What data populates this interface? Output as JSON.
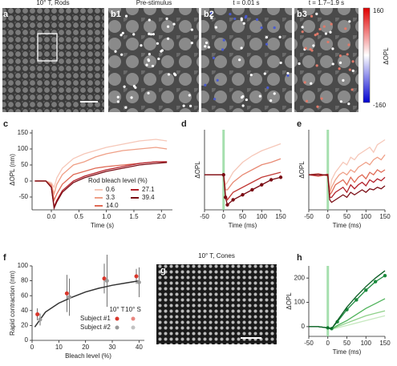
{
  "image_panels": [
    {
      "label": "a",
      "title": "10° T, Rods"
    },
    {
      "label": "b1",
      "title": "Pre-stimulus"
    },
    {
      "label": "b2",
      "title": "t = 0.01 s"
    },
    {
      "label": "b3",
      "title": "t = 1.7–1.9 s"
    },
    {
      "label": "g",
      "title": "10° T, Cones"
    }
  ],
  "colorbar": {
    "ticks": [
      160,
      -160
    ],
    "label": "ΔOPL"
  },
  "chart_data": [
    {
      "type": "line",
      "panel": "c",
      "xlabel": "Time (s)",
      "ylabel": "ΔOPL (nm)",
      "xlim": [
        -0.35,
        2.2
      ],
      "ylim": [
        -90,
        160
      ],
      "xticks": [
        {
          "value": 0,
          "label": "0.0"
        },
        0.5,
        {
          "value": 1,
          "label": "1.0"
        },
        1.5,
        {
          "value": 2,
          "label": "2.0"
        }
      ],
      "yticks": [
        -50,
        0,
        50,
        100,
        150
      ],
      "legend_title": "Rod bleach level (%)",
      "x": [
        -0.3,
        -0.1,
        0,
        0.05,
        0.1,
        0.2,
        0.4,
        0.6,
        0.8,
        1.0,
        1.3,
        1.6,
        1.9,
        2.1
      ],
      "series": [
        {
          "name": "0.6",
          "color": "#f6c7b8",
          "values": [
            0,
            0,
            -5,
            -20,
            10,
            40,
            70,
            85,
            95,
            105,
            115,
            125,
            130,
            125
          ]
        },
        {
          "name": "3.3",
          "color": "#ef9f86",
          "values": [
            0,
            0,
            -10,
            -40,
            -10,
            20,
            50,
            60,
            75,
            85,
            95,
            100,
            105,
            100
          ]
        },
        {
          "name": "14.0",
          "color": "#e06a55",
          "values": [
            0,
            0,
            -15,
            -60,
            -40,
            -10,
            20,
            30,
            40,
            45,
            50,
            55,
            60,
            60
          ]
        },
        {
          "name": "27.1",
          "color": "#b3202a",
          "values": [
            0,
            0,
            -20,
            -80,
            -60,
            -30,
            0,
            15,
            25,
            35,
            45,
            55,
            60,
            60
          ]
        },
        {
          "name": "39.4",
          "color": "#7a0c14",
          "values": [
            0,
            0,
            -20,
            -85,
            -65,
            -35,
            -5,
            10,
            20,
            30,
            40,
            50,
            55,
            58
          ]
        }
      ]
    },
    {
      "type": "line",
      "panel": "d",
      "xlabel": "Time (ms)",
      "ylabel": "ΔOPL",
      "xlim": [
        -50,
        150
      ],
      "ylim": [
        -70,
        90
      ],
      "xticks": [
        -50,
        0,
        50,
        100,
        150
      ],
      "stimulus_onset": 0,
      "x": [
        -50,
        -25,
        0,
        5,
        10,
        25,
        50,
        75,
        100,
        125,
        150
      ],
      "series": [
        {
          "color": "#f6c7b8",
          "values": [
            0,
            0,
            0,
            -20,
            -15,
            5,
            25,
            38,
            48,
            55,
            62
          ]
        },
        {
          "color": "#e88a74",
          "values": [
            0,
            0,
            0,
            -30,
            -30,
            -15,
            0,
            10,
            20,
            25,
            32
          ]
        },
        {
          "color": "#c23a36",
          "values": [
            0,
            0,
            0,
            -40,
            -50,
            -35,
            -25,
            -15,
            -5,
            0,
            5
          ]
        },
        {
          "color": "#7a0c14",
          "markers": true,
          "values": [
            0,
            0,
            0,
            -45,
            -60,
            -50,
            -40,
            -30,
            -20,
            -10,
            -5
          ]
        }
      ]
    },
    {
      "type": "line",
      "panel": "e",
      "xlabel": "Time (ms)",
      "ylabel": "ΔOPL",
      "xlim": [
        -50,
        150
      ],
      "ylim": [
        -70,
        90
      ],
      "xticks": [
        -50,
        0,
        50,
        100,
        150
      ],
      "stimulus_onset": 0,
      "x": [
        -50,
        -25,
        0,
        5,
        10,
        20,
        30,
        40,
        50,
        60,
        70,
        80,
        90,
        100,
        110,
        120,
        130,
        140,
        150
      ],
      "series": [
        {
          "color": "#f6c7b8",
          "values": [
            0,
            2,
            -2,
            -30,
            -10,
            5,
            15,
            25,
            20,
            35,
            30,
            40,
            45,
            50,
            55,
            45,
            60,
            65,
            70
          ]
        },
        {
          "color": "#ef9f86",
          "values": [
            0,
            -3,
            0,
            -35,
            -25,
            -10,
            0,
            5,
            0,
            10,
            5,
            15,
            20,
            25,
            20,
            30,
            35,
            30,
            40
          ]
        },
        {
          "color": "#e06a55",
          "values": [
            0,
            2,
            -2,
            -40,
            -35,
            -20,
            -15,
            -10,
            -20,
            -5,
            -15,
            -5,
            0,
            -8,
            5,
            0,
            10,
            5,
            10
          ]
        },
        {
          "color": "#b3202a",
          "values": [
            0,
            -2,
            1,
            -45,
            -45,
            -35,
            -30,
            -25,
            -35,
            -20,
            -28,
            -20,
            -15,
            -22,
            -10,
            -15,
            -8,
            -12,
            -5
          ]
        },
        {
          "color": "#7a0c14",
          "values": [
            0,
            1,
            -1,
            -50,
            -55,
            -50,
            -45,
            -40,
            -45,
            -35,
            -40,
            -35,
            -30,
            -35,
            -28,
            -30,
            -25,
            -28,
            -22
          ]
        }
      ]
    },
    {
      "type": "scatter",
      "panel": "f",
      "xlabel": "Bleach level (%)",
      "ylabel": "Rapid contraction (nm)",
      "xlim": [
        0,
        42
      ],
      "ylim": [
        0,
        100
      ],
      "xticks": [
        0,
        10,
        20,
        30,
        40
      ],
      "yticks": [
        0,
        20,
        40,
        60,
        80,
        100
      ],
      "legend_columns": [
        "10° T",
        "10° S"
      ],
      "series": [
        {
          "name": "Subject #1",
          "color": "#d8352a",
          "x": [
            2,
            13,
            27,
            39
          ],
          "values": [
            35,
            63,
            83,
            86
          ],
          "errors": [
            8,
            25,
            20,
            10
          ]
        },
        {
          "name": "Subject #2",
          "color": "#999999",
          "x": [
            3,
            14,
            28,
            40
          ],
          "values": [
            28,
            58,
            80,
            78
          ],
          "errors": [
            8,
            25,
            35,
            20
          ]
        }
      ],
      "fit": {
        "color": "#333333",
        "x": [
          1,
          5,
          10,
          15,
          20,
          25,
          30,
          35,
          40
        ],
        "values": [
          18,
          38,
          50,
          58,
          65,
          70,
          74,
          77,
          80
        ]
      }
    },
    {
      "type": "line",
      "panel": "h",
      "xlabel": "Time (ms)",
      "ylabel": "ΔOPL",
      "xlim": [
        -50,
        150
      ],
      "ylim": [
        -40,
        250
      ],
      "xticks": [
        -50,
        0,
        50,
        100,
        150
      ],
      "yticks": [
        0,
        100,
        200
      ],
      "stimulus_onset": 0,
      "x": [
        -50,
        -25,
        0,
        10,
        25,
        50,
        75,
        100,
        125,
        150
      ],
      "series": [
        {
          "color": "#c7e9c0",
          "values": [
            0,
            0,
            -5,
            -10,
            -5,
            5,
            15,
            25,
            35,
            45
          ]
        },
        {
          "color": "#8fd18a",
          "values": [
            0,
            0,
            -5,
            -10,
            0,
            15,
            30,
            45,
            55,
            65
          ]
        },
        {
          "color": "#4fb35a",
          "values": [
            0,
            0,
            -5,
            -10,
            5,
            25,
            50,
            75,
            95,
            115
          ]
        },
        {
          "color": "#1a8a3c",
          "markers": true,
          "values": [
            0,
            0,
            -5,
            -8,
            20,
            70,
            110,
            150,
            185,
            210
          ]
        },
        {
          "color": "#0b5d24",
          "values": [
            0,
            0,
            -5,
            -8,
            25,
            80,
            125,
            165,
            200,
            230
          ]
        }
      ]
    }
  ]
}
